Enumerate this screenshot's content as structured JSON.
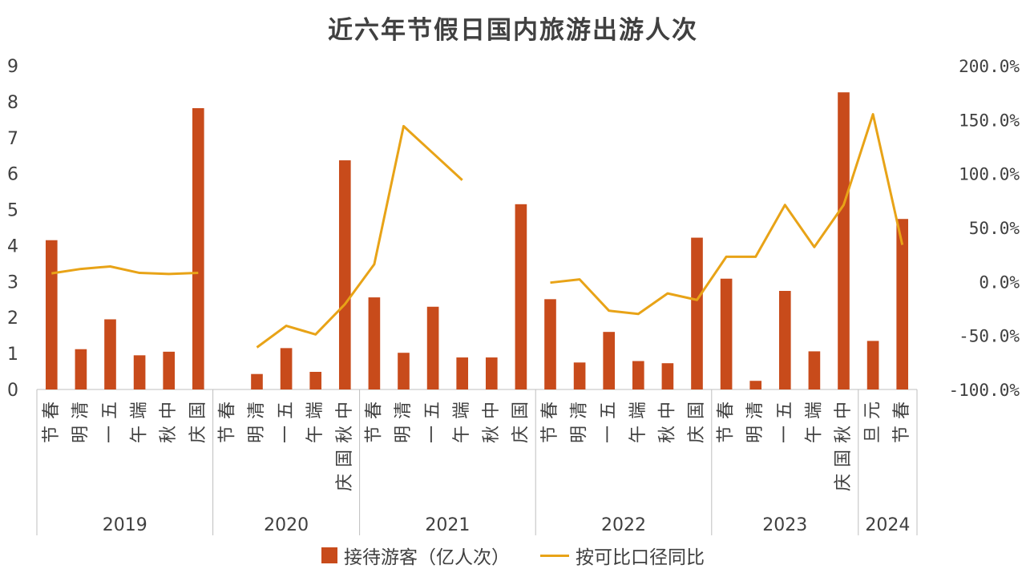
{
  "chart_data": {
    "type": "bar",
    "title": "近六年节假日国内旅游出游人次",
    "colors": {
      "bar": "#c84b1b",
      "line": "#e8a317"
    },
    "left_axis": {
      "ylim": [
        0,
        9
      ],
      "ticks": [
        "0",
        "1",
        "2",
        "3",
        "4",
        "5",
        "6",
        "7",
        "8",
        "9"
      ]
    },
    "right_axis": {
      "ylim": [
        -100,
        200
      ],
      "ticks": [
        "-100.0%",
        "-50.0%",
        "0.0%",
        "50.0%",
        "100.0%",
        "150.0%",
        "200.0%"
      ]
    },
    "legend_position": "bottom",
    "grid": false,
    "groups": [
      {
        "year": "2019",
        "holidays": [
          "春节",
          "清明",
          "五一",
          "端午",
          "中秋",
          "国庆"
        ]
      },
      {
        "year": "2020",
        "holidays": [
          "春节",
          "清明",
          "五一",
          "端午",
          "中秋国庆"
        ]
      },
      {
        "year": "2021",
        "holidays": [
          "春节",
          "清明",
          "五一",
          "端午",
          "中秋",
          "国庆"
        ]
      },
      {
        "year": "2022",
        "holidays": [
          "春节",
          "清明",
          "五一",
          "端午",
          "中秋",
          "国庆"
        ]
      },
      {
        "year": "2023",
        "holidays": [
          "春节",
          "清明",
          "五一",
          "端午",
          "中秋国庆"
        ]
      },
      {
        "year": "2024",
        "holidays": [
          "元旦",
          "春节"
        ]
      }
    ],
    "series": [
      {
        "name": "接待游客（亿人次）",
        "type": "bar",
        "axis": "left",
        "values": [
          4.15,
          1.12,
          1.95,
          0.95,
          1.05,
          7.82,
          null,
          0.43,
          1.15,
          0.49,
          6.37,
          2.56,
          1.02,
          2.3,
          0.89,
          0.89,
          5.15,
          2.51,
          0.75,
          1.6,
          0.79,
          0.73,
          4.22,
          3.08,
          0.24,
          2.74,
          1.06,
          8.26,
          1.35,
          4.74
        ]
      },
      {
        "name": "按可比口径同比",
        "type": "line",
        "axis": "right",
        "values": [
          7.6,
          11.7,
          14.0,
          8.0,
          7.0,
          8.0,
          null,
          -61.0,
          -41.0,
          -49.0,
          -21.0,
          16.0,
          144.0,
          119.0,
          94.0,
          null,
          null,
          -1.0,
          2.0,
          -27.0,
          -30.0,
          -11.0,
          -17.0,
          23.0,
          23.0,
          71.0,
          32.0,
          71.0,
          155.0,
          34.0
        ]
      }
    ]
  }
}
